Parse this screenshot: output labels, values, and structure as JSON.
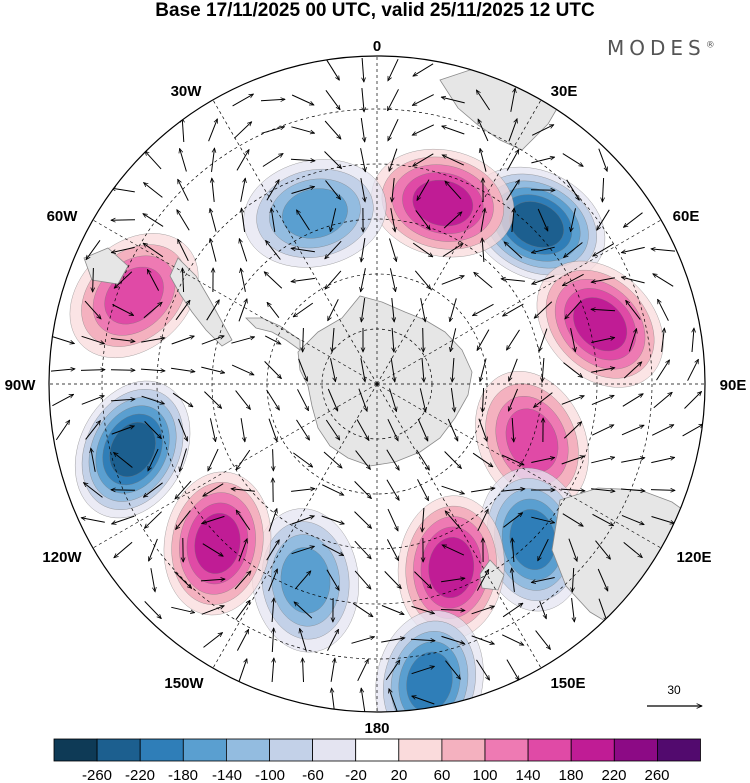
{
  "title": "Base 17/11/2025 00 UTC, valid 25/11/2025 12 UTC",
  "brand": {
    "name": "MODES",
    "mark": "®"
  },
  "map": {
    "projection": "south-polar-stereographic",
    "longitude_labels": [
      {
        "text": "0",
        "lon": 0
      },
      {
        "text": "30E",
        "lon": 30
      },
      {
        "text": "60E",
        "lon": 60
      },
      {
        "text": "90E",
        "lon": 90
      },
      {
        "text": "120E",
        "lon": 120
      },
      {
        "text": "150E",
        "lon": 150
      },
      {
        "text": "180",
        "lon": 180
      },
      {
        "text": "150W",
        "lon": -150
      },
      {
        "text": "120W",
        "lon": -120
      },
      {
        "text": "90W",
        "lon": -90
      },
      {
        "text": "60W",
        "lon": -60
      },
      {
        "text": "30W",
        "lon": -30
      }
    ],
    "colors": {
      "land": "#e6e6e6",
      "coast": "#8a8a8a",
      "graticule": "#000000",
      "vector": "#000000"
    }
  },
  "anomaly_centers": [
    {
      "sign": "negative",
      "lon": 45,
      "lat": -49,
      "peak": -240
    },
    {
      "sign": "positive",
      "lon": 20,
      "lat": -55,
      "peak": 200
    },
    {
      "sign": "positive",
      "lon": 75,
      "lat": -48,
      "peak": 200
    },
    {
      "sign": "positive",
      "lon": 110,
      "lat": -60,
      "peak": 140
    },
    {
      "sign": "negative",
      "lon": 135,
      "lat": -50,
      "peak": -200
    },
    {
      "sign": "positive",
      "lon": 158,
      "lat": -54,
      "peak": 200
    },
    {
      "sign": "negative",
      "lon": 170,
      "lat": -35,
      "peak": -200
    },
    {
      "sign": "negative",
      "lon": -160,
      "lat": -52,
      "peak": -140
    },
    {
      "sign": "positive",
      "lon": -135,
      "lat": -49,
      "peak": 200
    },
    {
      "sign": "negative",
      "lon": -105,
      "lat": -44,
      "peak": -240
    },
    {
      "sign": "positive",
      "lon": -70,
      "lat": -43,
      "peak": 160
    },
    {
      "sign": "negative",
      "lon": -20,
      "lat": -57,
      "peak": -140
    }
  ],
  "reference_vector": {
    "label": "30"
  },
  "colorbar": {
    "ticks": [
      "-260",
      "-220",
      "-180",
      "-140",
      "-100",
      "-60",
      "-20",
      "20",
      "60",
      "100",
      "140",
      "180",
      "220",
      "260"
    ],
    "colors": [
      "#0e3a56",
      "#1c5f8f",
      "#2f7eb8",
      "#5a9fd0",
      "#93bce0",
      "#c3d1e8",
      "#e4e4f1",
      "#ffffff",
      "#fadbdc",
      "#f4b1bf",
      "#ee7ab3",
      "#e04aa6",
      "#c01c95",
      "#8c0a85",
      "#520a6e"
    ]
  }
}
